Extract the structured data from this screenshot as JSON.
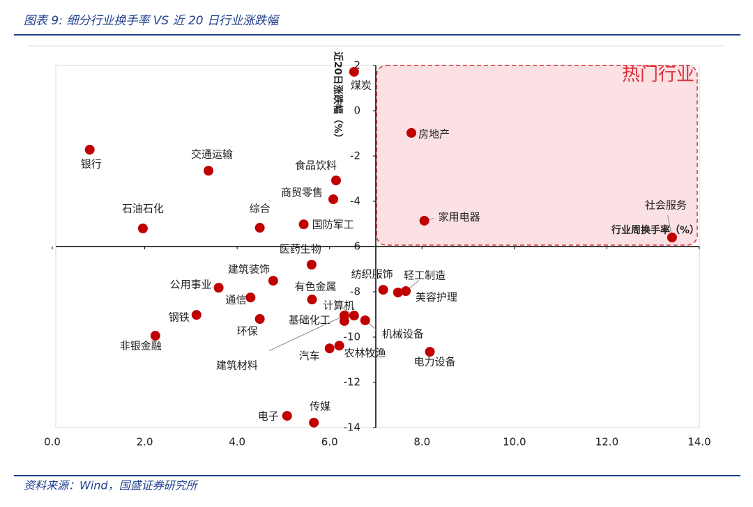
{
  "title": "图表 9:  细分行业换手率 VS 近 20 日行业涨跌幅",
  "source": "资料来源：Wind，国盛证券研究所",
  "chart_data": {
    "type": "scatter",
    "annotation": "热门行业",
    "x_label": "行业周换手率（%）",
    "y_label": "近20日涨跌幅（%）",
    "color": "#c00000",
    "point_labels": [
      "煤炭",
      "房地产",
      "银行",
      "交通运输",
      "食品饮料",
      "商贸零售",
      "家用电器",
      "社会服务",
      "石油石化",
      "综合",
      "国防军工",
      "医药生物",
      "建筑装饰",
      "公用事业",
      "纺织服饰",
      "轻工制造",
      "美容护理",
      "通信",
      "有色金属",
      "钢铁",
      "环保",
      "计算机",
      "基础化工",
      "建筑材料",
      "机械设备",
      "非银金融",
      "汽车",
      "农林牧渔",
      "电力设备",
      "电子",
      "传媒"
    ],
    "x": [
      6.53,
      7.77,
      0.81,
      3.38,
      6.14,
      6.08,
      8.05,
      13.41,
      1.96,
      4.49,
      5.44,
      5.61,
      4.78,
      3.6,
      7.16,
      7.65,
      7.48,
      4.29,
      5.62,
      3.12,
      4.49,
      6.53,
      6.32,
      6.32,
      6.77,
      2.23,
      6.0,
      6.21,
      8.17,
      5.08,
      5.66
    ],
    "values": [
      1.72,
      -0.98,
      -1.72,
      -2.65,
      -3.08,
      -3.91,
      -4.86,
      -5.6,
      -5.2,
      -5.17,
      -5.02,
      -6.8,
      -7.51,
      -7.82,
      -7.91,
      -7.97,
      -8.03,
      -8.25,
      -8.34,
      -9.02,
      -9.2,
      -9.05,
      -9.29,
      -9.05,
      -9.26,
      -9.94,
      -10.5,
      -10.38,
      -10.65,
      -13.48,
      -13.78
    ],
    "xlim": [
      0,
      14
    ],
    "xticks": [
      {
        "value": 0,
        "label": "0.0"
      },
      {
        "value": 2,
        "label": "2.0"
      },
      {
        "value": 4,
        "label": "4.0"
      },
      {
        "value": 6,
        "label": "6.0"
      },
      {
        "value": 8,
        "label": "8.0"
      },
      {
        "value": 10,
        "label": "10.0"
      },
      {
        "value": 12,
        "label": "12.0"
      },
      {
        "value": 14,
        "label": "14.0"
      }
    ],
    "ylim": [
      -14,
      2
    ],
    "yticks": [
      2,
      0,
      -2,
      -4,
      -6,
      -8,
      -10,
      -12,
      -14
    ],
    "x_cross": 7,
    "y_cross": -6
  }
}
